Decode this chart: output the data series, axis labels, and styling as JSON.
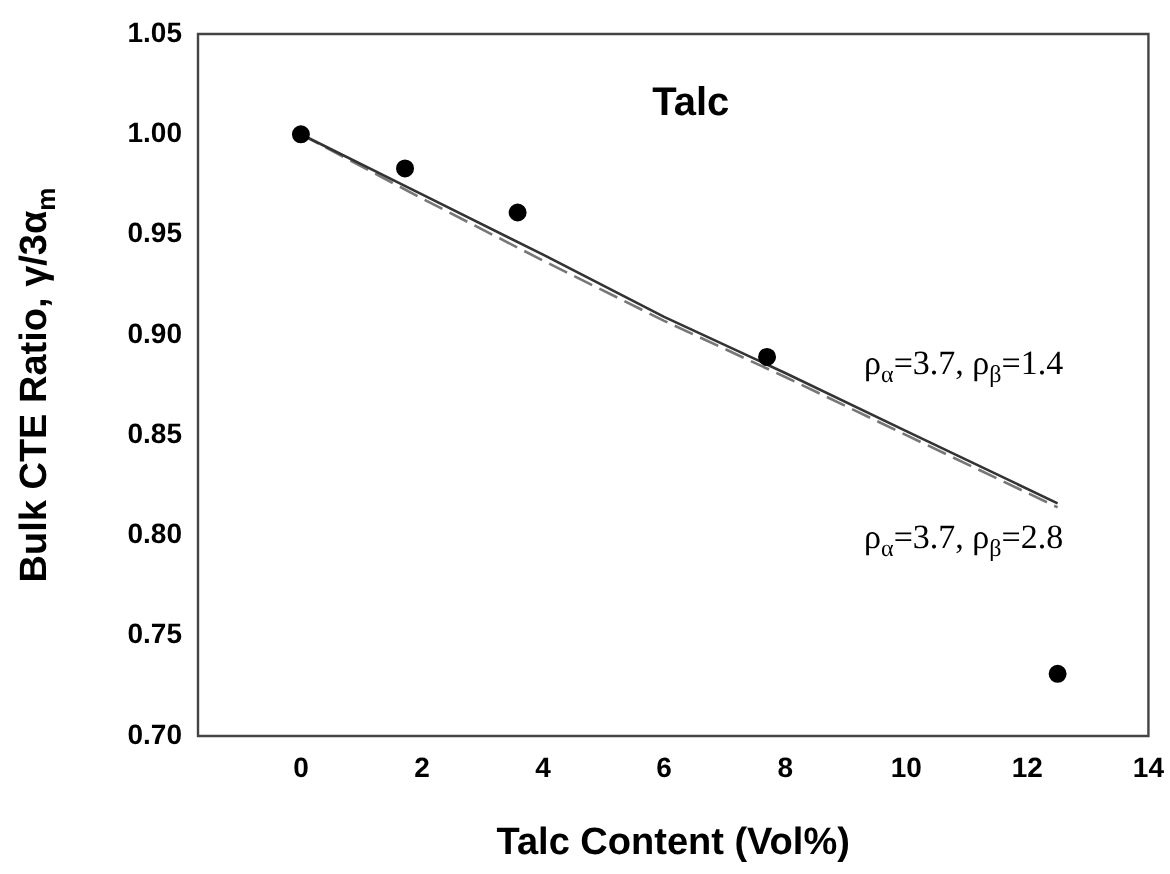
{
  "chart_data": {
    "type": "scatter",
    "title": "Talc",
    "xlabel": "Talc Content (Vol%)",
    "ylabel": "Bulk CTE Ratio, γ/3α$_{m}$",
    "xlim": [
      -1.7,
      14
    ],
    "xticks": [
      0,
      2,
      4,
      6,
      8,
      10,
      12,
      14
    ],
    "ylim": [
      0.7,
      1.05
    ],
    "yticks": [
      {
        "value": 0.7,
        "label": "0.70"
      },
      {
        "value": 0.75,
        "label": "0.75"
      },
      {
        "value": 0.8,
        "label": "0.80"
      },
      {
        "value": 0.85,
        "label": "0.85"
      },
      {
        "value": 0.9,
        "label": "0.90"
      },
      {
        "value": 0.95,
        "label": "0.95"
      },
      {
        "value": 1.0,
        "label": "1.00"
      },
      {
        "value": 1.05,
        "label": "1.05"
      }
    ],
    "legend": false,
    "series": [
      {
        "marker": "circle",
        "color": "#000000",
        "x": [
          0,
          1.72,
          3.58,
          7.7,
          12.5
        ],
        "values": [
          1.0,
          0.983,
          0.961,
          0.889,
          0.731
        ]
      },
      {
        "type": "line",
        "name": "ρ$_{α}$=3.7, ρ$_{β}$=1.4",
        "color": "#333333",
        "line_style": "solid",
        "x": [
          0,
          2,
          4,
          6,
          8,
          10,
          12.5
        ],
        "values": [
          1.0,
          0.97,
          0.94,
          0.909,
          0.881,
          0.852,
          0.816
        ]
      },
      {
        "type": "line",
        "name": "ρ$_{α}$=3.7, ρ$_{β}$=2.8",
        "color": "#777777",
        "line_style": "dashed",
        "x": [
          0,
          2,
          4,
          6,
          8,
          10,
          12.5
        ],
        "values": [
          1.0,
          0.968,
          0.937,
          0.907,
          0.879,
          0.85,
          0.814
        ]
      }
    ]
  }
}
